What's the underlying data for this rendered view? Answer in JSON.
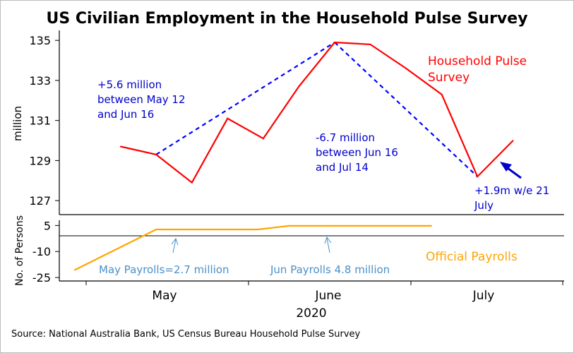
{
  "title": "US Civilian Employment in the Household Pulse Survey",
  "source": "Source: National Australia Bank, US Census Bureau Household Pulse Survey",
  "colors": {
    "household": "#ff0000",
    "trend": "#0000ff",
    "payrolls": "#ffa500",
    "payroll_annotation": "#4a90c8",
    "axis": "#000000"
  },
  "chart_data": [
    {
      "type": "line",
      "title": "US Civilian Employment in the Household Pulse Survey",
      "ylabel": "million",
      "ylim": [
        126.3,
        135.5
      ],
      "yticks": [
        127,
        129,
        131,
        133,
        135
      ],
      "xlim": [
        "2020-04-23",
        "2020-07-31"
      ],
      "series": [
        {
          "name": "Household Pulse Survey",
          "x": [
            "2020-05-05",
            "2020-05-12",
            "2020-05-19",
            "2020-05-26",
            "2020-06-02",
            "2020-06-09",
            "2020-06-16",
            "2020-06-23",
            "2020-06-30",
            "2020-07-07",
            "2020-07-14",
            "2020-07-21"
          ],
          "y": [
            129.7,
            129.3,
            127.9,
            131.1,
            130.1,
            132.7,
            134.9,
            134.8,
            133.6,
            132.3,
            128.2,
            130.0
          ]
        },
        {
          "x": [
            "2020-05-12",
            "2020-06-16"
          ],
          "y": [
            129.3,
            134.9
          ]
        },
        {
          "x": [
            "2020-06-16",
            "2020-07-14"
          ],
          "y": [
            134.9,
            128.2
          ]
        }
      ],
      "annotations": [
        "+5.6 million between May 12 and Jun 16",
        "-6.7 million between Jun 16 and Jul 14",
        "+1.9m w/e 21 July"
      ]
    },
    {
      "type": "line",
      "ylabel": "No. of Persons",
      "ylim": [
        -27,
        8
      ],
      "yticks": [
        5,
        -10,
        -25
      ],
      "series": [
        {
          "name": "Official Payrolls",
          "x": [
            "2020-04-26",
            "2020-05-12",
            "2020-06-01",
            "2020-06-07",
            "2020-07-05"
          ],
          "y": [
            -20.7,
            2.7,
            2.7,
            4.8,
            4.8
          ]
        }
      ],
      "annotations": [
        "May Payrolls=2.7 million",
        "Jun Payrolls 4.8 million"
      ]
    }
  ],
  "xaxis": {
    "labels": [
      "May",
      "June",
      "July"
    ],
    "year": "2020"
  },
  "annotations": {
    "trend_up_line1": "+5.6 million",
    "trend_up_line2": "between May 12",
    "trend_up_line3": "and Jun 16",
    "trend_down_line1": "-6.7 million",
    "trend_down_line2": "between Jun 16",
    "trend_down_line3": "and Jul 14",
    "latest_line1": "+1.9m w/e 21",
    "latest_line2": "July",
    "household_label_line1": "Household Pulse",
    "household_label_line2": "Survey",
    "payrolls_label": "Official Payrolls",
    "may_payrolls": "May Payrolls=2.7 million",
    "jun_payrolls": "Jun Payrolls 4.8 million"
  }
}
